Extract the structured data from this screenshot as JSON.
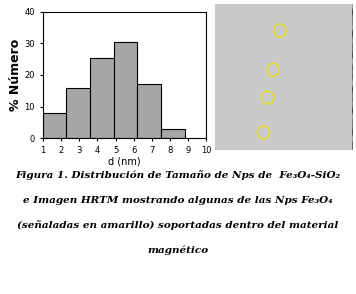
{
  "chart_data": {
    "type": "histogram",
    "bins": [
      1,
      2.3,
      3.6,
      4.9,
      6.2,
      7.5,
      8.8
    ],
    "values": [
      8,
      16,
      25.5,
      30.5,
      17,
      3
    ],
    "color": "#a6a6a6",
    "x_label": "d (nm)",
    "y_label": "% Número",
    "xlim": [
      1,
      10
    ],
    "xticks": [
      1,
      2,
      3,
      4,
      5,
      6,
      7,
      8,
      9,
      10
    ],
    "ylim": [
      0,
      40
    ],
    "yticks": [
      0,
      10,
      20,
      30,
      40
    ]
  },
  "caption": [
    "Figura 1. Distribución de Tamaño de Nps de  Fe₃O₄-SiO₂",
    "e Imagen HRTM mostrando algunas de las Nps Fe₃O₄",
    "(señaladas en amarillo) soportadas dentro del material",
    "magnético"
  ]
}
